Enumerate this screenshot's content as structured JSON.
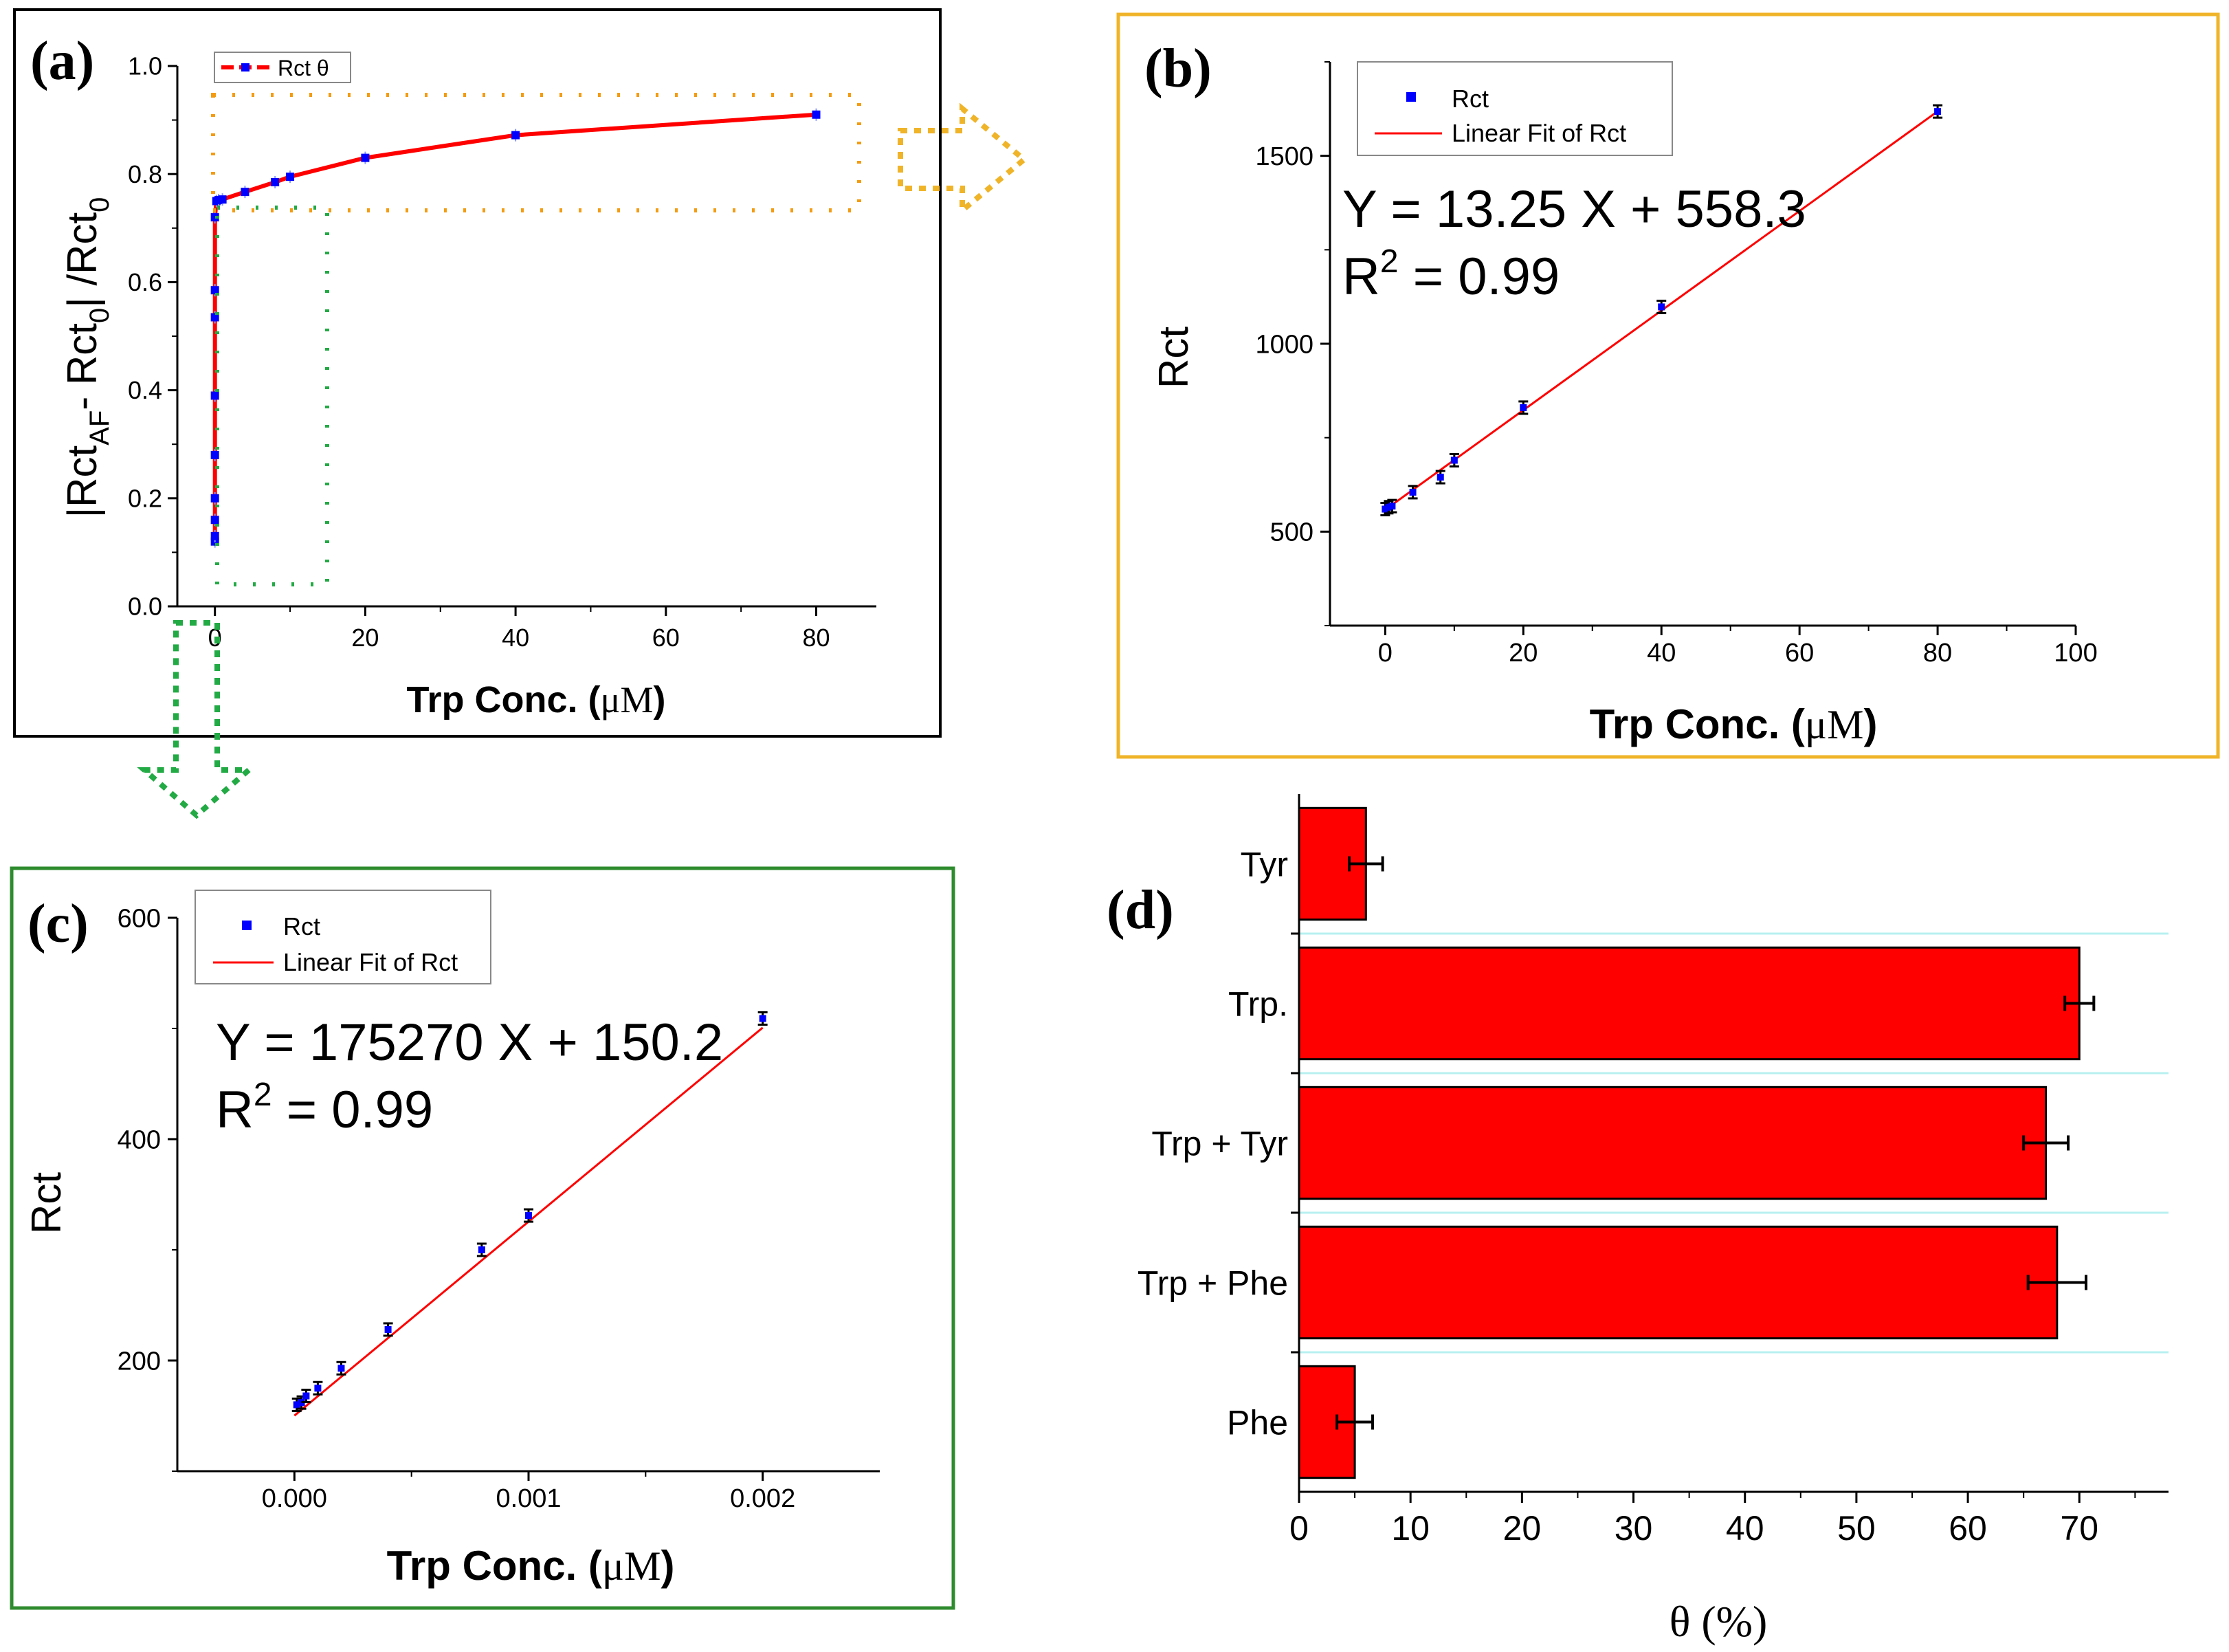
{
  "panels": {
    "a": {
      "tag": "(a)",
      "type": "line",
      "legend": "Rct θ",
      "ylabel_html": "|Rct_AF⁻ − Rct_0| / Rct_0",
      "ylabel_parts": [
        "|Rct",
        "AF",
        "- Rct",
        "0",
        "| /Rct",
        "0"
      ],
      "xlabel_main": "Trp Conc. (",
      "xlabel_unit": "μM",
      "xlabel_close": ")",
      "x_ticks": [
        "0",
        "20",
        "40",
        "60",
        "80"
      ],
      "y_ticks": [
        "0.0",
        "0.2",
        "0.4",
        "0.6",
        "0.8",
        "1.0"
      ],
      "xlim": [
        -5,
        88
      ],
      "ylim": [
        0,
        1.0
      ],
      "points": [
        [
          0,
          0.12
        ],
        [
          0,
          0.13
        ],
        [
          0,
          0.16
        ],
        [
          0,
          0.2
        ],
        [
          0,
          0.28
        ],
        [
          0,
          0.39
        ],
        [
          0,
          0.535
        ],
        [
          0,
          0.585
        ],
        [
          0,
          0.72
        ],
        [
          0.2,
          0.75
        ],
        [
          0.5,
          0.752
        ],
        [
          1,
          0.753
        ],
        [
          4,
          0.767
        ],
        [
          8,
          0.785
        ],
        [
          10,
          0.795
        ],
        [
          20,
          0.83
        ],
        [
          40,
          0.872
        ],
        [
          80,
          0.91
        ]
      ]
    },
    "b": {
      "tag": "(b)",
      "type": "scatter",
      "legend_points": "Rct",
      "legend_fit": "Linear Fit of Rct",
      "equation": "Y = 13.25 X + 558.3",
      "r2_prefix": "R",
      "r2_sup": "2",
      "r2_suffix": " = 0.99",
      "xlabel_main": "Trp Conc. (",
      "xlabel_unit": "μM",
      "xlabel_close": ")",
      "ylabel": "Rct",
      "x_ticks": [
        "0",
        "20",
        "40",
        "60",
        "80",
        "100"
      ],
      "y_ticks": [
        "500",
        "1000",
        "1500"
      ],
      "xlim": [
        -8,
        100
      ],
      "ylim": [
        250,
        1750
      ],
      "points": [
        [
          0,
          560
        ],
        [
          0.5,
          565
        ],
        [
          1,
          568
        ],
        [
          4,
          605
        ],
        [
          8,
          645
        ],
        [
          10,
          690
        ],
        [
          20,
          830
        ],
        [
          40,
          1098
        ],
        [
          80,
          1618
        ]
      ],
      "fit": {
        "slope": 13.25,
        "intercept": 558.3,
        "x_range": [
          0,
          80
        ]
      }
    },
    "c": {
      "tag": "(c)",
      "type": "scatter",
      "legend_points": "Rct",
      "legend_fit": "Linear Fit of Rct",
      "equation": "Y = 175270 X + 150.2",
      "r2_prefix": "R",
      "r2_sup": "2",
      "r2_suffix": " = 0.99",
      "xlabel_main": "Trp Conc. (",
      "xlabel_unit": "μM",
      "xlabel_close": ")",
      "ylabel": "Rct",
      "x_ticks": [
        "0.000",
        "0.001",
        "0.002"
      ],
      "y_ticks": [
        "200",
        "400",
        "600"
      ],
      "xlim": [
        -0.0005,
        0.0025
      ],
      "ylim": [
        100,
        600
      ],
      "points": [
        [
          1e-05,
          160
        ],
        [
          3e-05,
          162
        ],
        [
          5e-05,
          168
        ],
        [
          0.0001,
          175
        ],
        [
          0.0002,
          193
        ],
        [
          0.0004,
          228
        ],
        [
          0.0008,
          300
        ],
        [
          0.001,
          331
        ],
        [
          0.002,
          509
        ]
      ],
      "fit": {
        "slope": 175270,
        "intercept": 150.2,
        "x_range": [
          0,
          0.002
        ]
      }
    },
    "d": {
      "tag": "(d)",
      "type": "bar",
      "xlabel": "θ (%)",
      "categories": [
        "Tyr",
        "Trp.",
        "Trp + Tyr",
        "Trp + Phe",
        "Phe"
      ],
      "values": [
        6,
        70,
        67,
        68,
        5
      ],
      "errors": [
        1.5,
        1.3,
        2.0,
        2.6,
        1.6
      ],
      "x_ticks": [
        "0",
        "10",
        "20",
        "30",
        "40",
        "50",
        "60",
        "70"
      ],
      "xlim": [
        0,
        78
      ]
    }
  },
  "colors": {
    "red": "#ff0000",
    "blue": "#0000ff",
    "orange_frame": "#f0b429",
    "green_frame": "#2e8b2e",
    "orange_dots": "#f39c12",
    "green_dots": "#22aa44",
    "grid_cyan": "#b8f0f0"
  }
}
